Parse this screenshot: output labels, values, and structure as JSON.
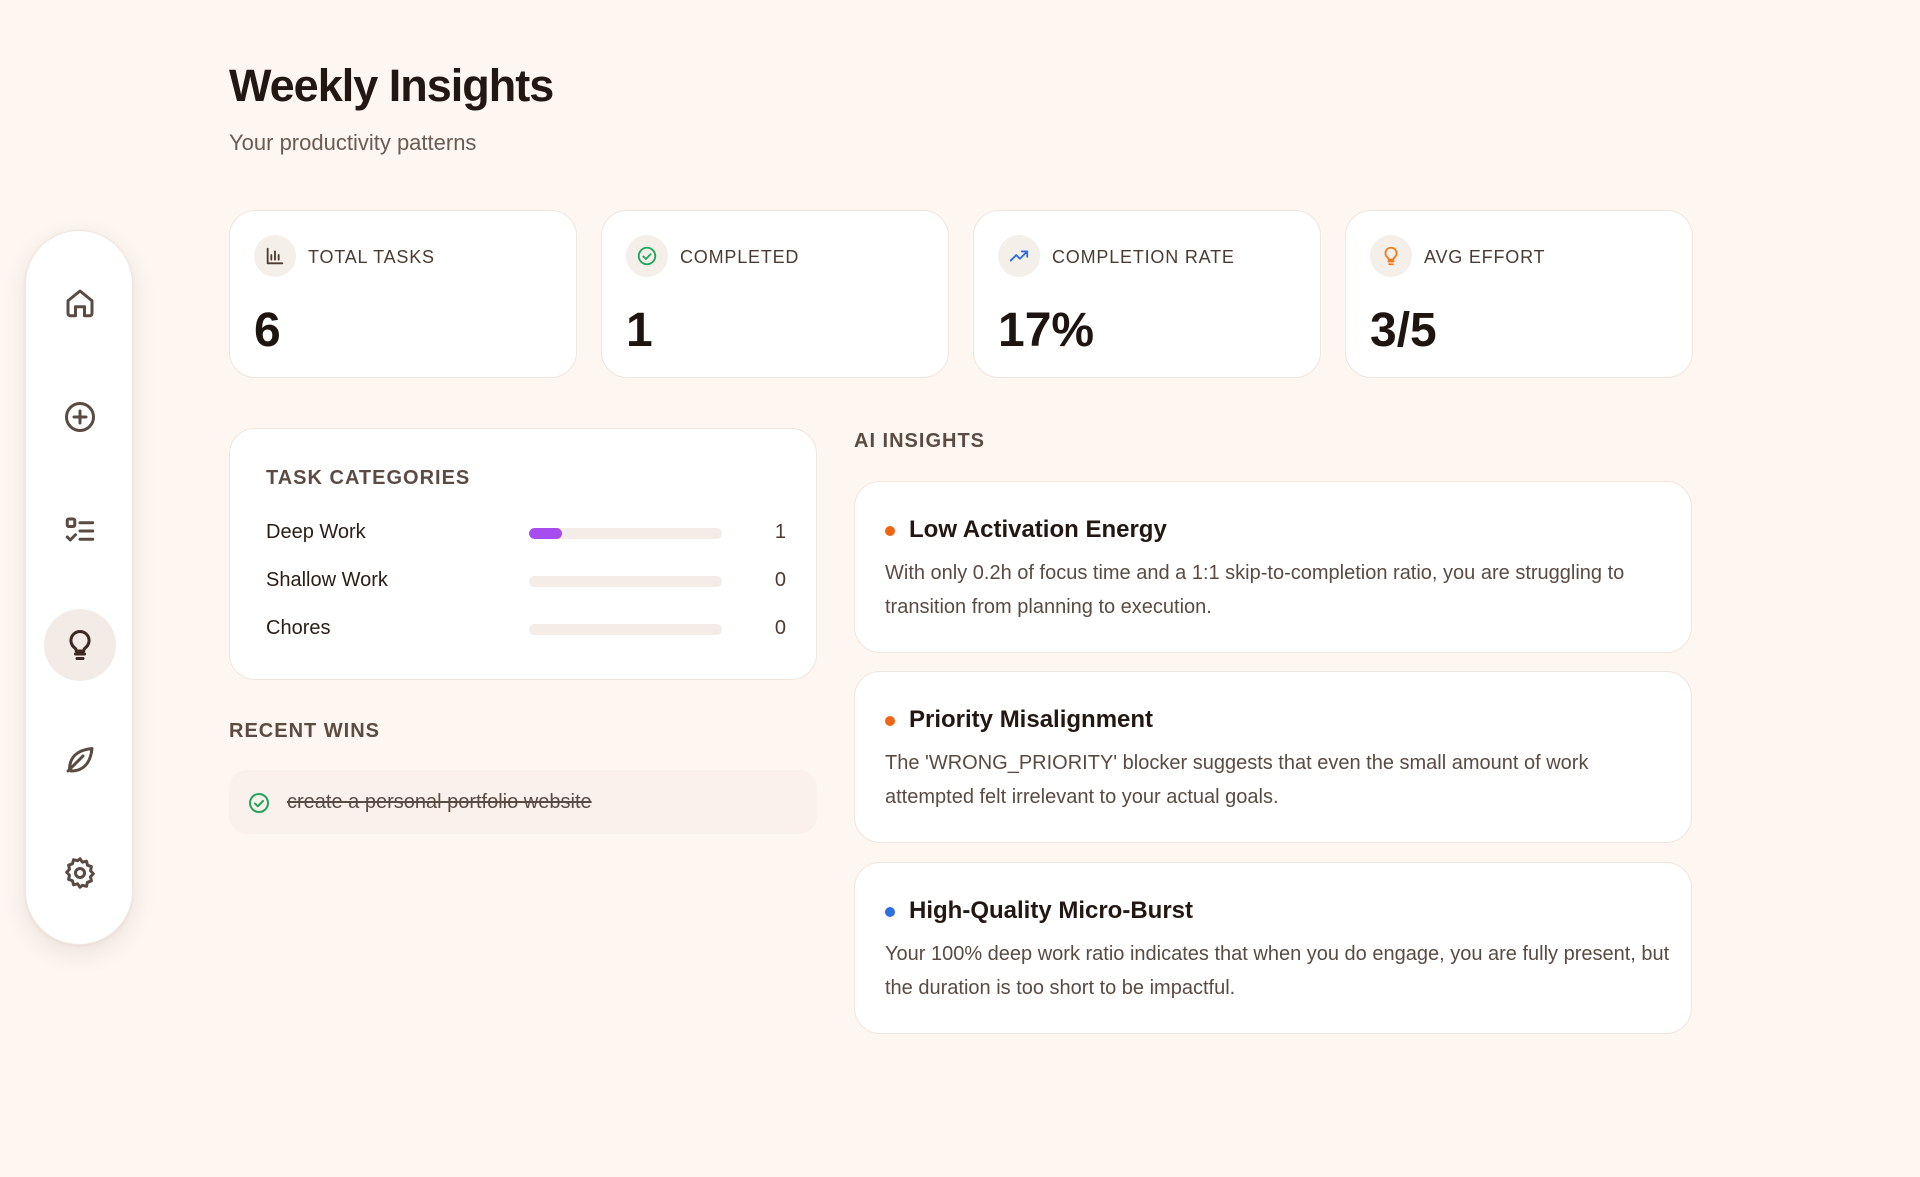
{
  "header": {
    "title": "Weekly Insights",
    "subtitle": "Your productivity patterns"
  },
  "sidebar": {
    "items": [
      {
        "name": "home",
        "icon": "home-icon",
        "active": false
      },
      {
        "name": "add-task",
        "icon": "plus-circle-icon",
        "active": false
      },
      {
        "name": "tasks",
        "icon": "checklist-icon",
        "active": false
      },
      {
        "name": "insights",
        "icon": "lightbulb-icon",
        "active": true
      },
      {
        "name": "wellbeing",
        "icon": "leaf-icon",
        "active": false
      },
      {
        "name": "settings",
        "icon": "gear-icon",
        "active": false
      }
    ]
  },
  "stats": [
    {
      "label": "TOTAL TASKS",
      "value": "6",
      "icon": "bar-chart-icon",
      "color": "#4b3b32"
    },
    {
      "label": "COMPLETED",
      "value": "1",
      "icon": "check-circle-icon",
      "color": "#22a45d"
    },
    {
      "label": "COMPLETION RATE",
      "value": "17%",
      "icon": "trending-up-icon",
      "color": "#2f6fe0"
    },
    {
      "label": "AVG EFFORT",
      "value": "3/5",
      "icon": "lightbulb-icon",
      "color": "#f07a1a"
    }
  ],
  "categories": {
    "heading": "TASK CATEGORIES",
    "items": [
      {
        "name": "Deep Work",
        "count": "1",
        "fraction": 0.17,
        "color": "#a64df0"
      },
      {
        "name": "Shallow Work",
        "count": "0",
        "fraction": 0,
        "color": "#a64df0"
      },
      {
        "name": "Chores",
        "count": "0",
        "fraction": 0,
        "color": "#a64df0"
      }
    ]
  },
  "recent_wins": {
    "heading": "RECENT WINS",
    "items": [
      "create a personal portfolio website"
    ],
    "check_color": "#22a45d"
  },
  "ai_insights": {
    "heading": "AI INSIGHTS",
    "items": [
      {
        "title": "Low Activation Energy",
        "body": "With only 0.2h of focus time and a 1:1 skip-to-completion ratio, you are struggling to transition from planning to execution.",
        "color": "#f06414"
      },
      {
        "title": "Priority Misalignment",
        "body": "The 'WRONG_PRIORITY' blocker suggests that even the small amount of work attempted felt irrelevant to your actual goals.",
        "color": "#f06414"
      },
      {
        "title": "High-Quality Micro-Burst",
        "body": "Your 100% deep work ratio indicates that when you do engage, you are fully present, but the duration is too short to be impactful.",
        "color": "#2f6fe0"
      }
    ]
  }
}
